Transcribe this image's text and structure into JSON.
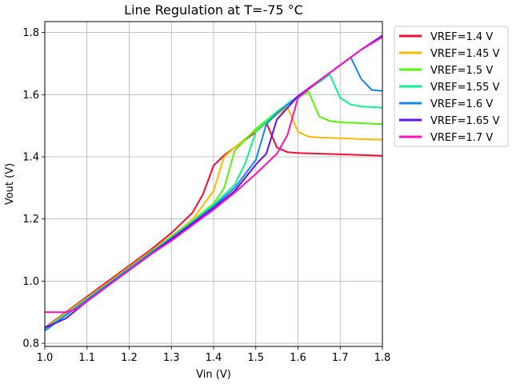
{
  "chart_data": {
    "type": "line",
    "title": "Line Regulation at T=-75 °C",
    "xlabel": "Vin (V)",
    "ylabel": "Vout (V)",
    "xlim": [
      1.0,
      1.8
    ],
    "ylim": [
      0.79,
      1.835
    ],
    "xticks": [
      "1.0",
      "1.1",
      "1.2",
      "1.3",
      "1.4",
      "1.5",
      "1.6",
      "1.7",
      "1.8"
    ],
    "yticks": [
      "0.8",
      "1.0",
      "1.2",
      "1.4",
      "1.6",
      "1.8"
    ],
    "grid": true,
    "legend_position": "outside-right-top",
    "series": [
      {
        "name": "VREF=1.4 V",
        "color": "#f0102f",
        "x": [
          1.0,
          1.05,
          1.1,
          1.15,
          1.2,
          1.25,
          1.3,
          1.35,
          1.375,
          1.4,
          1.425,
          1.45,
          1.5,
          1.525,
          1.55,
          1.575,
          1.6,
          1.65,
          1.7,
          1.75,
          1.8
        ],
        "y": [
          0.85,
          0.9,
          0.95,
          1.0,
          1.05,
          1.1,
          1.155,
          1.22,
          1.28,
          1.372,
          1.405,
          1.43,
          1.48,
          1.51,
          1.43,
          1.415,
          1.412,
          1.41,
          1.408,
          1.406,
          1.403
        ]
      },
      {
        "name": "VREF=1.45 V",
        "color": "#ffb800",
        "x": [
          1.0,
          1.05,
          1.1,
          1.15,
          1.2,
          1.25,
          1.3,
          1.35,
          1.4,
          1.425,
          1.45,
          1.5,
          1.55,
          1.575,
          1.6,
          1.625,
          1.65,
          1.7,
          1.75,
          1.8
        ],
        "y": [
          0.848,
          0.897,
          0.946,
          0.995,
          1.045,
          1.095,
          1.145,
          1.198,
          1.29,
          1.4,
          1.43,
          1.485,
          1.535,
          1.56,
          1.48,
          1.465,
          1.462,
          1.46,
          1.457,
          1.455
        ]
      },
      {
        "name": "VREF=1.5 V",
        "color": "#55f50a",
        "x": [
          1.0,
          1.05,
          1.1,
          1.15,
          1.2,
          1.25,
          1.3,
          1.35,
          1.4,
          1.425,
          1.45,
          1.5,
          1.55,
          1.6,
          1.625,
          1.65,
          1.675,
          1.7,
          1.75,
          1.8
        ],
        "y": [
          0.846,
          0.894,
          0.943,
          0.992,
          1.042,
          1.092,
          1.142,
          1.194,
          1.25,
          1.3,
          1.42,
          1.49,
          1.545,
          1.59,
          1.61,
          1.53,
          1.515,
          1.511,
          1.508,
          1.505
        ]
      },
      {
        "name": "VREF=1.55 V",
        "color": "#10f090",
        "x": [
          1.0,
          1.05,
          1.1,
          1.15,
          1.2,
          1.25,
          1.3,
          1.35,
          1.4,
          1.45,
          1.475,
          1.5,
          1.55,
          1.6,
          1.65,
          1.675,
          1.7,
          1.725,
          1.75,
          1.8
        ],
        "y": [
          0.845,
          0.893,
          0.942,
          0.991,
          1.04,
          1.09,
          1.14,
          1.19,
          1.245,
          1.31,
          1.38,
          1.48,
          1.545,
          1.595,
          1.64,
          1.665,
          1.59,
          1.568,
          1.562,
          1.558
        ]
      },
      {
        "name": "VREF=1.6 V",
        "color": "#1188ee",
        "x": [
          1.0,
          1.05,
          1.1,
          1.15,
          1.2,
          1.25,
          1.3,
          1.35,
          1.4,
          1.45,
          1.5,
          1.525,
          1.55,
          1.6,
          1.65,
          1.7,
          1.725,
          1.75,
          1.775,
          1.8
        ],
        "y": [
          0.84,
          0.89,
          0.94,
          0.99,
          1.04,
          1.09,
          1.138,
          1.188,
          1.24,
          1.3,
          1.39,
          1.505,
          1.54,
          1.595,
          1.645,
          1.695,
          1.72,
          1.65,
          1.615,
          1.612
        ]
      },
      {
        "name": "VREF=1.65 V",
        "color": "#6010f0",
        "x": [
          1.0,
          1.05,
          1.1,
          1.15,
          1.2,
          1.25,
          1.3,
          1.35,
          1.4,
          1.45,
          1.5,
          1.525,
          1.55,
          1.6,
          1.65,
          1.7,
          1.75,
          1.8
        ],
        "y": [
          0.85,
          0.88,
          0.935,
          0.985,
          1.035,
          1.085,
          1.135,
          1.185,
          1.235,
          1.29,
          1.375,
          1.41,
          1.52,
          1.595,
          1.645,
          1.695,
          1.745,
          1.79
        ]
      },
      {
        "name": "VREF=1.7 V",
        "color": "#ff10c0",
        "x": [
          1.0,
          1.025,
          1.05,
          1.075,
          1.1,
          1.15,
          1.2,
          1.25,
          1.3,
          1.35,
          1.4,
          1.45,
          1.5,
          1.55,
          1.575,
          1.6,
          1.65,
          1.7,
          1.75,
          1.8
        ],
        "y": [
          0.9,
          0.9,
          0.9,
          0.91,
          0.935,
          0.985,
          1.035,
          1.085,
          1.13,
          1.18,
          1.23,
          1.285,
          1.345,
          1.41,
          1.47,
          1.59,
          1.645,
          1.695,
          1.745,
          1.785
        ]
      }
    ]
  }
}
